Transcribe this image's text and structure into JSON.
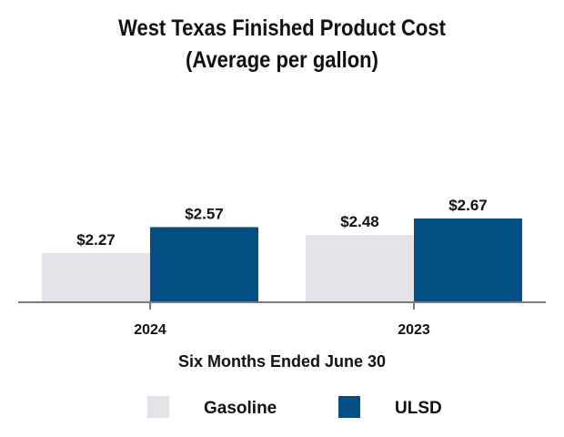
{
  "title_line1": "West Texas Finished Product Cost",
  "title_line2": "(Average per gallon)",
  "colors": {
    "gasoline": "#e2e3e7",
    "ulsd": "#044e83",
    "axis": "#7a7a7a"
  },
  "chart_data": {
    "type": "bar",
    "title": "West Texas Finished Product Cost (Average per gallon)",
    "xlabel": "Six Months Ended June 30",
    "ylabel": "",
    "categories": [
      "2024",
      "2023"
    ],
    "series": [
      {
        "name": "Gasoline",
        "values": [
          2.27,
          2.48
        ],
        "labels": [
          "$2.27",
          "$2.48"
        ]
      },
      {
        "name": "ULSD",
        "values": [
          2.57,
          2.67
        ],
        "labels": [
          "$2.57",
          "$2.67"
        ]
      }
    ],
    "ylim": [
      1.7,
      2.67
    ],
    "grid": false,
    "legend_position": "bottom"
  }
}
